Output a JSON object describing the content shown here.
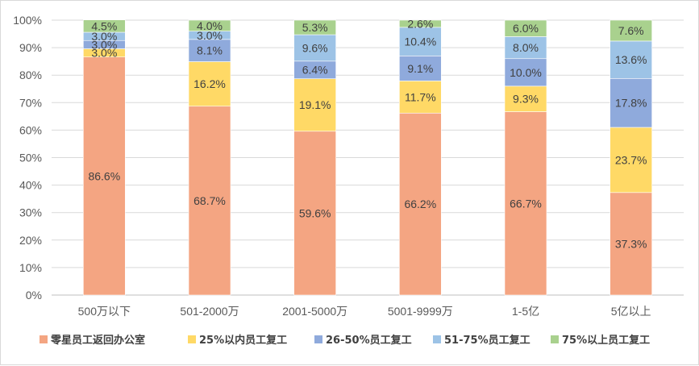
{
  "chart_data": {
    "type": "bar",
    "stacked": true,
    "categories": [
      "500万以下",
      "501-2000万",
      "2001-5000万",
      "5001-9999万",
      "1-5亿",
      "5亿以上"
    ],
    "y_tick_labels": [
      "0%",
      "10%",
      "20%",
      "30%",
      "40%",
      "50%",
      "60%",
      "70%",
      "80%",
      "90%",
      "100%"
    ],
    "ylim": [
      0,
      100
    ],
    "grid": true,
    "legend_position": "bottom",
    "series": [
      {
        "name": "零星员工返回办公室",
        "color": "#f4a582",
        "values": [
          86.6,
          68.7,
          59.6,
          66.2,
          66.7,
          37.3
        ],
        "labels": [
          "86.6%",
          "68.7%",
          "59.6%",
          "66.2%",
          "66.7%",
          "37.3%"
        ]
      },
      {
        "name": "25%以内员工复工",
        "color": "#ffd966",
        "values": [
          3.0,
          16.2,
          19.1,
          11.7,
          9.3,
          23.7
        ],
        "labels": [
          "3.0%",
          "16.2%",
          "19.1%",
          "11.7%",
          "9.3%",
          "23.7%"
        ]
      },
      {
        "name": "26-50%员工复工",
        "color": "#8faadc",
        "values": [
          3.0,
          8.1,
          6.4,
          9.1,
          10.0,
          17.8
        ],
        "labels": [
          "3.0%",
          "8.1%",
          "6.4%",
          "9.1%",
          "10.0%",
          "17.8%"
        ]
      },
      {
        "name": "51-75%员工复工",
        "color": "#9dc3e6",
        "values": [
          3.0,
          3.0,
          9.6,
          10.4,
          8.0,
          13.6
        ],
        "labels": [
          "3.0%",
          "3.0%",
          "9.6%",
          "10.4%",
          "8.0%",
          "13.6%"
        ]
      },
      {
        "name": "75%以上员工复工",
        "color": "#a9d18e",
        "values": [
          4.5,
          4.0,
          5.3,
          2.6,
          6.0,
          7.6
        ],
        "labels": [
          "4.5%",
          "4.0%",
          "5.3%",
          "2.6%",
          "6.0%",
          "7.6%"
        ]
      }
    ]
  }
}
